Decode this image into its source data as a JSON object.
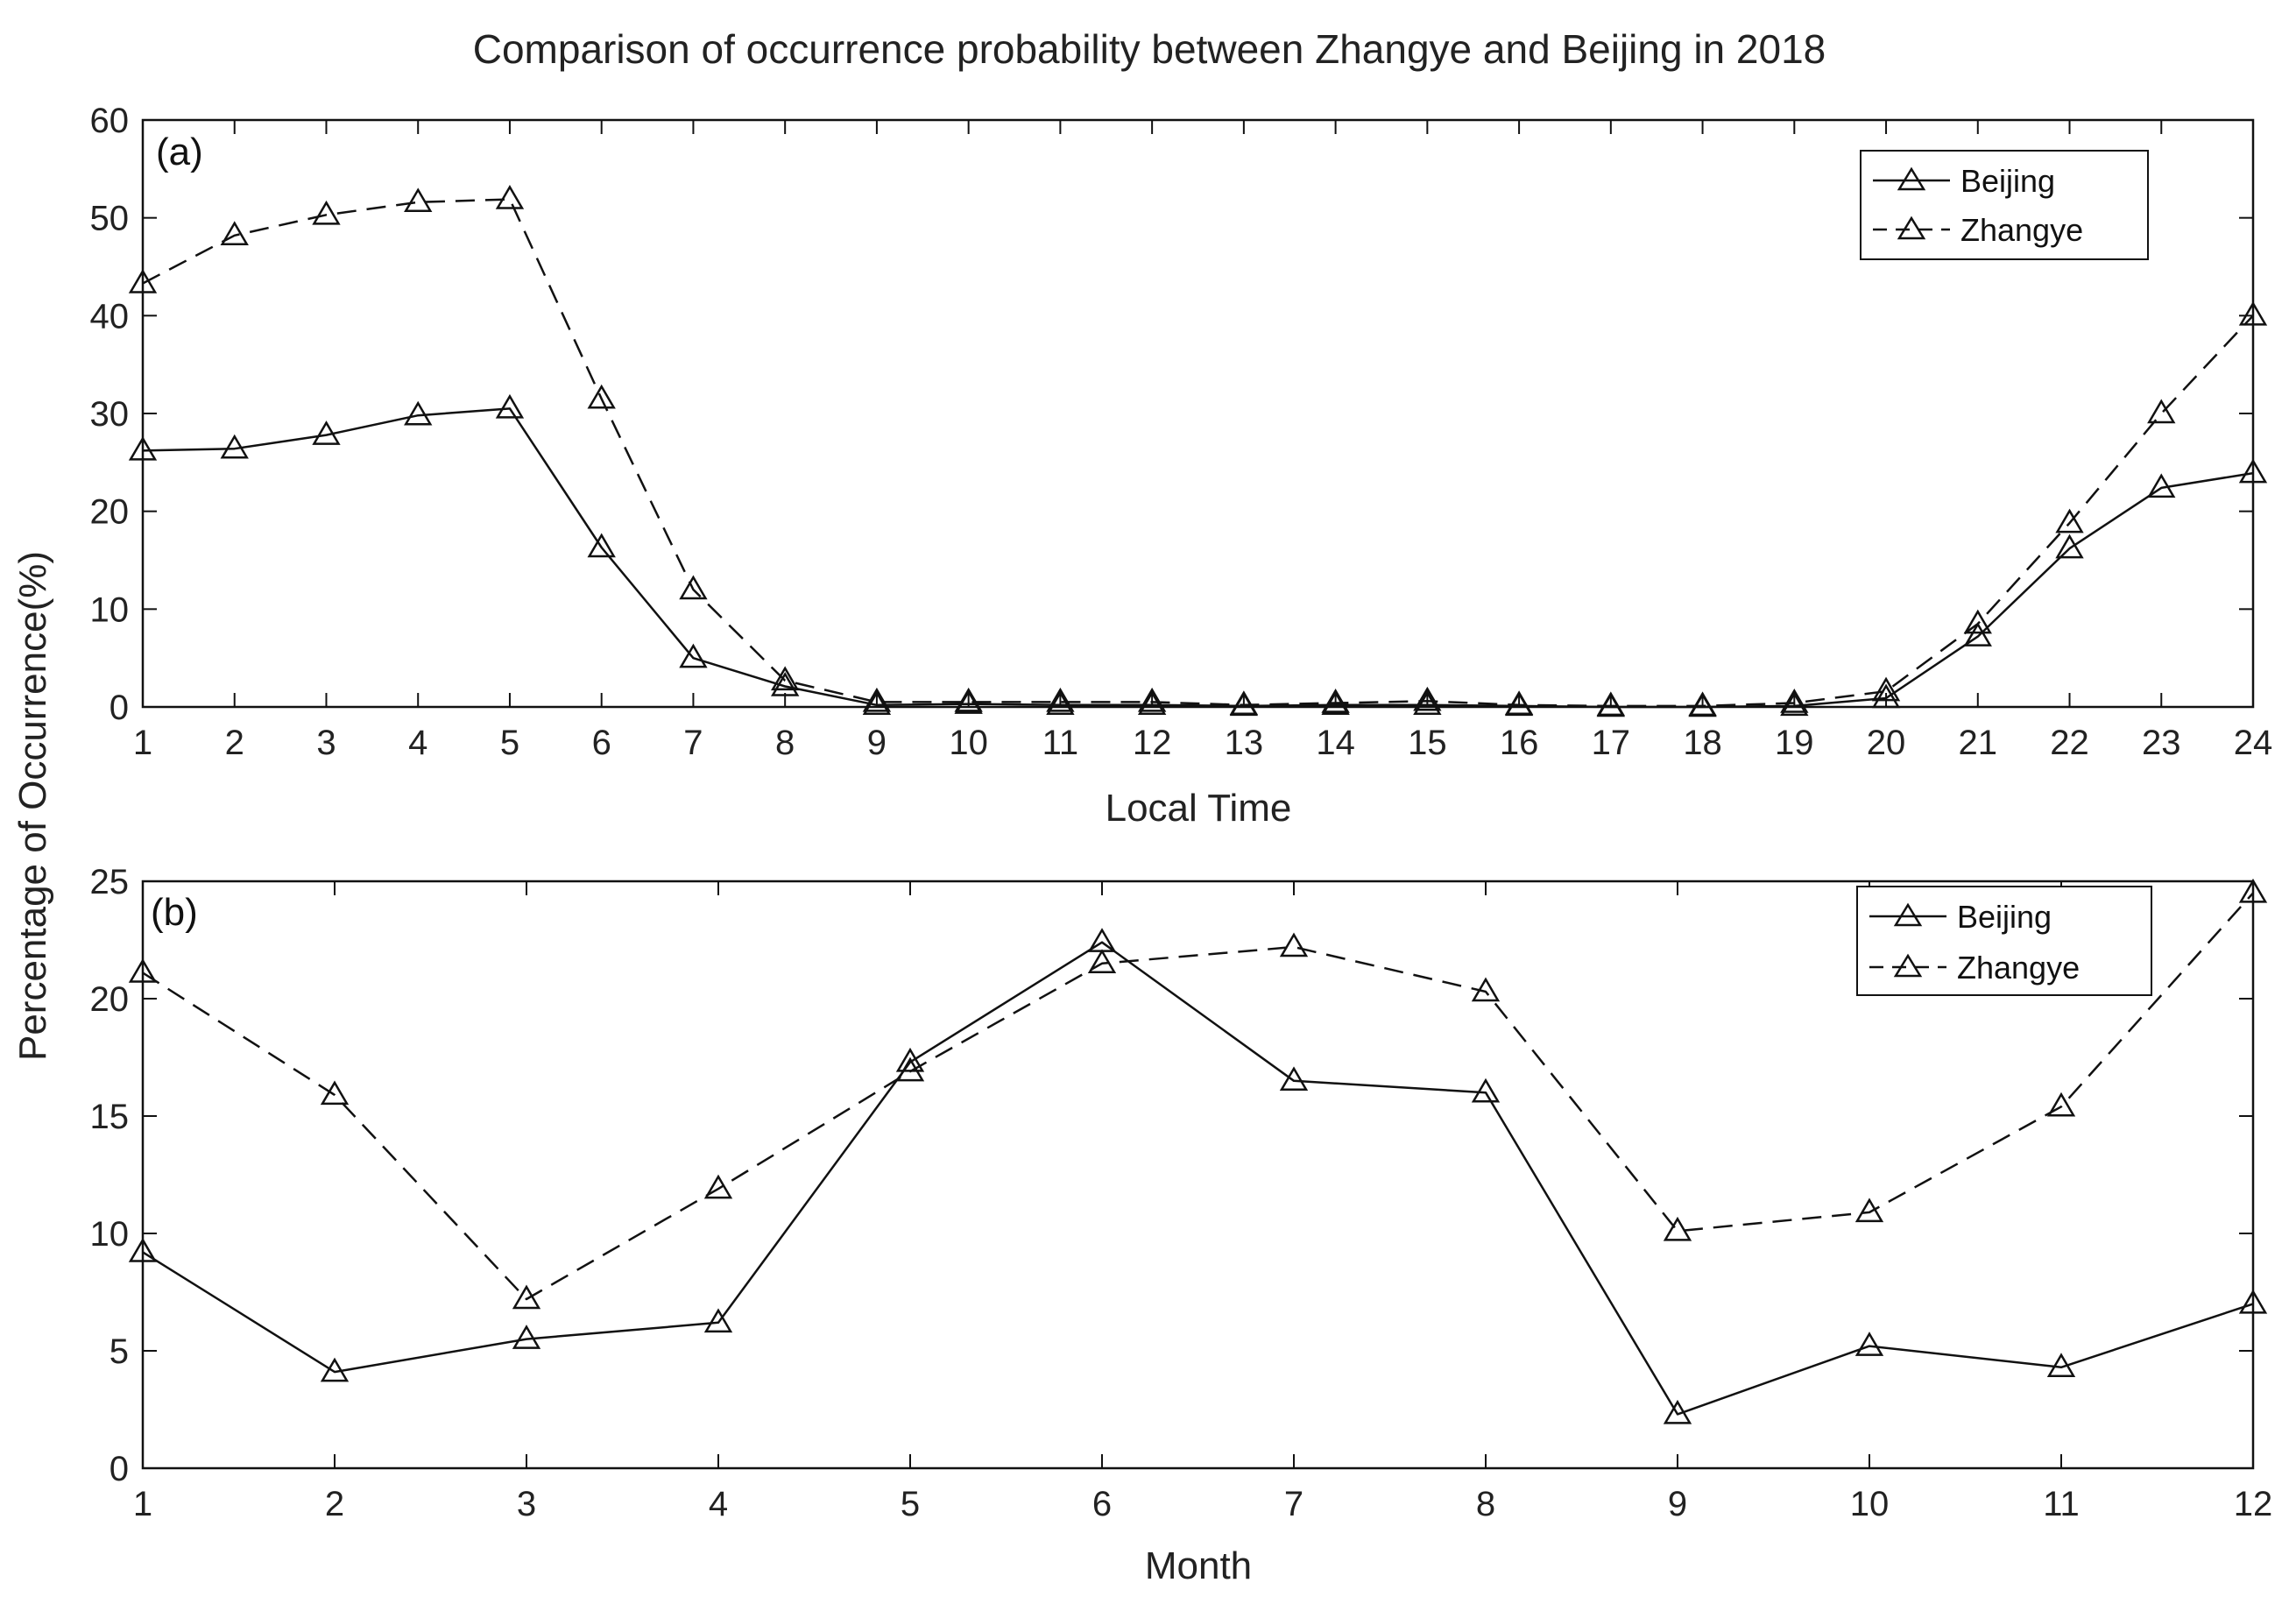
{
  "chart_data": [
    {
      "type": "line",
      "panel_label": "(a)",
      "title": "Comparison of occurrence probability between Zhangye and Beijing in 2018",
      "xlabel": "Local Time",
      "ylabel": "Percentage of Occurrence(%)",
      "x": [
        1,
        2,
        3,
        4,
        5,
        6,
        7,
        8,
        9,
        10,
        11,
        12,
        13,
        14,
        15,
        16,
        17,
        18,
        19,
        20,
        21,
        22,
        23,
        24
      ],
      "xlim": [
        1,
        24
      ],
      "ylim": [
        0,
        60
      ],
      "x_ticks": [
        "1",
        "2",
        "3",
        "4",
        "5",
        "6",
        "7",
        "8",
        "9",
        "10",
        "11",
        "12",
        "13",
        "14",
        "15",
        "16",
        "17",
        "18",
        "19",
        "20",
        "21",
        "22",
        "23",
        "24"
      ],
      "y_ticks": [
        0,
        10,
        20,
        30,
        40,
        50,
        60
      ],
      "legend_position": "top-right",
      "series": [
        {
          "name": "Beijing",
          "line_style": "solid",
          "marker": "triangle",
          "values": [
            26.2,
            26.4,
            27.8,
            29.8,
            30.5,
            16.3,
            5.0,
            2.1,
            0.2,
            0.3,
            0.2,
            0.2,
            0.1,
            0.2,
            0.2,
            0.1,
            0.0,
            0.0,
            0.1,
            0.9,
            7.2,
            16.2,
            22.4,
            23.9
          ]
        },
        {
          "name": "Zhangye",
          "line_style": "dashed",
          "marker": "triangle",
          "values": [
            43.3,
            48.2,
            50.3,
            51.6,
            51.9,
            31.5,
            12.0,
            2.7,
            0.5,
            0.5,
            0.5,
            0.5,
            0.2,
            0.4,
            0.6,
            0.2,
            0.1,
            0.1,
            0.4,
            1.6,
            8.5,
            18.8,
            30.0,
            40.0
          ]
        }
      ]
    },
    {
      "type": "line",
      "panel_label": "(b)",
      "xlabel": "Month",
      "ylabel": "Percentage of Occurrence(%)",
      "x": [
        1,
        2,
        3,
        4,
        5,
        6,
        7,
        8,
        9,
        10,
        11,
        12
      ],
      "xlim": [
        1,
        12
      ],
      "ylim": [
        0,
        25
      ],
      "x_ticks": [
        "1",
        "2",
        "3",
        "4",
        "5",
        "6",
        "7",
        "8",
        "9",
        "10",
        "11",
        "12"
      ],
      "y_ticks": [
        0,
        5,
        10,
        15,
        20,
        25
      ],
      "legend_position": "top-right",
      "series": [
        {
          "name": "Beijing",
          "line_style": "solid",
          "marker": "triangle",
          "values": [
            9.2,
            4.1,
            5.5,
            6.2,
            17.3,
            22.4,
            16.5,
            16.0,
            2.3,
            5.2,
            4.3,
            7.0
          ]
        },
        {
          "name": "Zhangye",
          "line_style": "dashed",
          "marker": "triangle",
          "values": [
            21.1,
            15.9,
            7.2,
            11.9,
            16.9,
            21.5,
            22.2,
            20.3,
            10.1,
            10.9,
            15.4,
            24.5
          ]
        }
      ]
    }
  ]
}
